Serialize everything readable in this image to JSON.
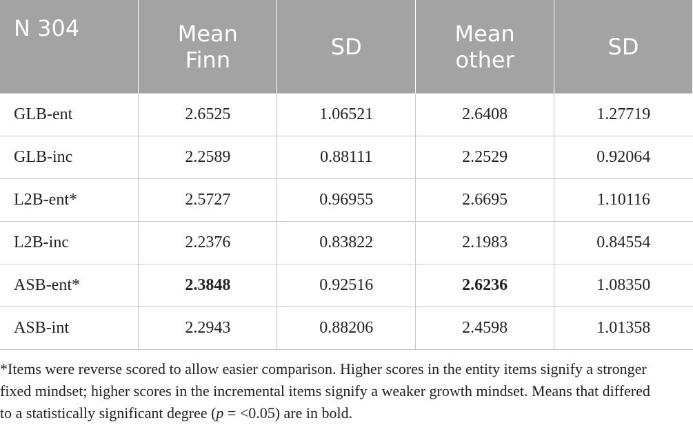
{
  "table": {
    "header": [
      "N 304",
      "Mean Finn",
      "SD",
      "Mean other",
      "SD"
    ],
    "rows": [
      [
        "GLB-ent",
        "2.6525",
        "1.06521",
        "2.6408",
        "1.27719"
      ],
      [
        "GLB-inc",
        "2.2589",
        "0.88111",
        "2.2529",
        "0.92064"
      ],
      [
        "L2B-ent*",
        "2.5727",
        "0.96955",
        "2.6695",
        "1.10116"
      ],
      [
        "L2B-inc",
        "2.2376",
        "0.83822",
        "2.1983",
        "0.84554"
      ],
      [
        "ASB-ent*",
        "2.3848",
        "0.92516",
        "2.6236",
        "1.08350"
      ],
      [
        "ASB-int",
        "2.2943",
        "0.88206",
        "2.4598",
        "1.01358"
      ]
    ],
    "bold": [
      [
        4,
        1
      ],
      [
        4,
        3
      ]
    ]
  },
  "footnote": {
    "before": "*Items were reverse scored to allow easier comparison. Higher scores in the entity items signify a stronger fixed mindset; higher scores in the incremental items signify a weaker growth mindset. Means that differed to a statistically significant degree (",
    "italic": "p",
    "after": " = <0.05) are in bold."
  }
}
